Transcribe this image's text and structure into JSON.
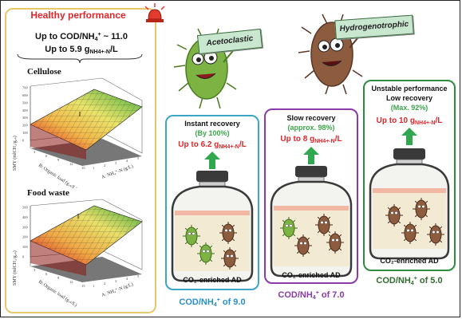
{
  "left": {
    "title": "Healthy performance",
    "line1_pre": "Up to COD/NH",
    "line1_sub": "4",
    "line1_sup": "+",
    "line1_post": " ~ 11.0",
    "line2_pre": "Up to 5.9 g",
    "line2_sub": "NH4+-N",
    "line2_post": "/L",
    "cellulose_title": "Cellulose",
    "foodwaste_title": "Food waste",
    "smy_label": "SMY (mlCH₄/gᵥₛ)",
    "b_axis_label": "B: Organic load (gᵥₛ/L)",
    "a_axis_label": "A: NH₄⁺-N (g/L)",
    "cellulose_z_ticks": [
      "0",
      "100",
      "200",
      "300",
      "400",
      "500",
      "600",
      "700"
    ],
    "food_z_ticks": [
      "0",
      "100",
      "200",
      "300",
      "400",
      "500"
    ],
    "b_ticks": [
      "3",
      "6",
      "9",
      "12",
      "15"
    ],
    "a_ticks": [
      "1",
      "2",
      "3",
      "4",
      "5"
    ]
  },
  "signs": {
    "acetoclastic": "Acetoclastic",
    "hydrogenotrophic": "Hydrogenotrophic"
  },
  "panels": [
    {
      "title": "Instant recovery",
      "recovery": "(By 100%)",
      "up_pre": "Up to 6.2 g",
      "up_sub": "NH4+-N",
      "up_post": "/L",
      "border": "#3da6c8",
      "caption": "CO₂-enriched AD",
      "cod_pre": "COD/NH",
      "cod_sub": "4",
      "cod_sup": "+",
      "cod_post": " of 9.0",
      "cod_color": "#2a8fc9"
    },
    {
      "title": "Slow recovery",
      "recovery": "(approx. 98%)",
      "up_pre": "Up to 8 g",
      "up_sub": "NH4+-N",
      "up_post": "/L",
      "border": "#8b3aa8",
      "caption": "CO₂-enriched AD",
      "cod_pre": "COD/NH",
      "cod_sub": "4",
      "cod_sup": "+",
      "cod_post": " of 7.0",
      "cod_color": "#8b3aa8"
    },
    {
      "title": "Unstable performance",
      "title2": "Low recovery",
      "recovery": "(Max. 92%)",
      "up_pre": "Up to 10 g",
      "up_sub": "NH4+-N",
      "up_post": "/L",
      "border": "#2e8b3e",
      "caption": "CO₂-enriched AD",
      "cod_pre": "COD/NH",
      "cod_sub": "4",
      "cod_sup": "+",
      "cod_post": " of 5.0",
      "cod_color": "#2f6b2f"
    }
  ],
  "colors": {
    "red_text": "#e0262a",
    "green_text": "#3aa84a",
    "arrow_green": "#2fa84f",
    "acetoclastic_microbe": "#7cb342",
    "hydrogenotrophic_microbe": "#8d5b3e"
  }
}
